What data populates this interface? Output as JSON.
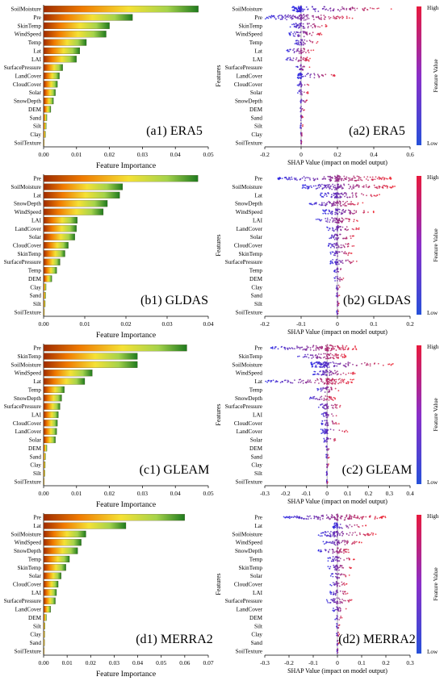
{
  "chart_data": [
    {
      "id": "a1",
      "type": "bar",
      "orientation": "horizontal",
      "panel_label": "(a1) ERA5",
      "xlabel": "Feature Importance",
      "xlim": [
        0,
        0.05
      ],
      "xticks": [
        "0.00",
        "0.01",
        "0.02",
        "0.03",
        "0.04",
        "0.05"
      ],
      "categories": [
        "SoilMoisture",
        "Pre",
        "SkinTemp",
        "WindSpeed",
        "Temp",
        "Lat",
        "LAI",
        "SurfacePressure",
        "LandCover",
        "CloudCover",
        "Solar",
        "SnowDepth",
        "DEM",
        "Sand",
        "Silt",
        "Clay",
        "SoilTexture"
      ],
      "values": [
        0.047,
        0.027,
        0.02,
        0.019,
        0.013,
        0.011,
        0.01,
        0.0058,
        0.0048,
        0.0042,
        0.0036,
        0.003,
        0.0022,
        0.001,
        0.0008,
        0.0006,
        0.0002
      ]
    },
    {
      "id": "a2",
      "type": "scatter",
      "subtype": "shap_beeswarm",
      "panel_label": "(a2) ERA5",
      "xlabel": "SHAP Value (impact on model output)",
      "ylabel": "Features",
      "colorbar_label": "Feature Value",
      "colorbar_high": "High",
      "colorbar_low": "Low",
      "xlim": [
        -0.2,
        0.6
      ],
      "xticks": [
        "-0.2",
        "0",
        "0.2",
        "0.4",
        "0.6"
      ],
      "categories": [
        "SoilMoisture",
        "Pre",
        "SkinTemp",
        "WindSpeed",
        "Temp",
        "Lat",
        "LAI",
        "SurfacePressure",
        "LandCover",
        "CloudCover",
        "Solar",
        "SnowDepth",
        "DEM",
        "Sand",
        "Silt",
        "Clay",
        "SoilTexture"
      ],
      "ranges": [
        [
          -0.05,
          0.5
        ],
        [
          -0.2,
          0.3
        ],
        [
          -0.06,
          0.15
        ],
        [
          -0.07,
          0.12
        ],
        [
          -0.04,
          0.1
        ],
        [
          -0.08,
          0.07
        ],
        [
          -0.09,
          0.05
        ],
        [
          -0.03,
          0.05
        ],
        [
          -0.02,
          0.2
        ],
        [
          -0.02,
          0.05
        ],
        [
          -0.02,
          0.04
        ],
        [
          -0.01,
          0.04
        ],
        [
          -0.01,
          0.02
        ],
        [
          -0.005,
          0.01
        ],
        [
          -0.005,
          0.01
        ],
        [
          -0.003,
          0.006
        ],
        [
          -0.002,
          0.003
        ]
      ]
    },
    {
      "id": "b1",
      "type": "bar",
      "orientation": "horizontal",
      "panel_label": "(b1) GLDAS",
      "xlabel": "Feature Importance",
      "xlim": [
        0,
        0.04
      ],
      "xticks": [
        "0.00",
        "0.01",
        "0.02",
        "0.03",
        "0.04"
      ],
      "categories": [
        "Pre",
        "SoilMoisture",
        "Lat",
        "SnowDepth",
        "WindSpeed",
        "LAI",
        "LandCover",
        "Solar",
        "CloudCover",
        "SkinTemp",
        "SurfacePressure",
        "Temp",
        "DEM",
        "Clay",
        "Sand",
        "Silt",
        "SoilTexture"
      ],
      "values": [
        0.0375,
        0.0192,
        0.0185,
        0.0155,
        0.0145,
        0.0082,
        0.008,
        0.0076,
        0.006,
        0.0052,
        0.004,
        0.0032,
        0.002,
        0.0006,
        0.0005,
        0.0004,
        0.0002
      ]
    },
    {
      "id": "b2",
      "type": "scatter",
      "subtype": "shap_beeswarm",
      "panel_label": "(b2) GLDAS",
      "xlabel": "SHAP Value (impact on model output)",
      "ylabel": "Features",
      "colorbar_label": "Feature Value",
      "colorbar_high": "High",
      "colorbar_low": "Low",
      "xlim": [
        -0.2,
        0.2
      ],
      "xticks": [
        "-0.2",
        "-0.1",
        "0",
        "0.1",
        "0.2"
      ],
      "categories": [
        "Pre",
        "SoilMoisture",
        "Lat",
        "SnowDepth",
        "WindSpeed",
        "LAI",
        "LandCover",
        "Solar",
        "CloudCover",
        "SkinTemp",
        "SurfacePressure",
        "Temp",
        "DEM",
        "Clay",
        "Sand",
        "Silt",
        "SoilTexture"
      ],
      "ranges": [
        [
          -0.17,
          0.15
        ],
        [
          -0.1,
          0.16
        ],
        [
          -0.05,
          0.12
        ],
        [
          -0.08,
          0.07
        ],
        [
          -0.04,
          0.1
        ],
        [
          -0.06,
          0.06
        ],
        [
          -0.03,
          0.06
        ],
        [
          -0.03,
          0.05
        ],
        [
          -0.03,
          0.05
        ],
        [
          -0.02,
          0.04
        ],
        [
          -0.02,
          0.06
        ],
        [
          -0.01,
          0.02
        ],
        [
          -0.01,
          0.02
        ],
        [
          -0.005,
          0.008
        ],
        [
          -0.004,
          0.006
        ],
        [
          -0.003,
          0.005
        ],
        [
          -0.002,
          0.003
        ]
      ]
    },
    {
      "id": "c1",
      "type": "bar",
      "orientation": "horizontal",
      "panel_label": "(c1) GLEAM",
      "xlabel": "Feature Importance",
      "xlim": [
        0,
        0.05
      ],
      "xticks": [
        "0.00",
        "0.01",
        "0.02",
        "0.03",
        "0.04",
        "0.05"
      ],
      "categories": [
        "Pre",
        "SkinTemp",
        "SoilMoisture",
        "WindSpeed",
        "Lat",
        "Temp",
        "SnowDepth",
        "SurfacePressure",
        "LAI",
        "CloudCover",
        "LandCover",
        "Solar",
        "DEM",
        "Sand",
        "Clay",
        "Silt",
        "SoilTexture"
      ],
      "values": [
        0.0435,
        0.0285,
        0.0285,
        0.0148,
        0.0125,
        0.0063,
        0.0055,
        0.005,
        0.0045,
        0.0042,
        0.004,
        0.0036,
        0.001,
        0.0006,
        0.0005,
        0.0004,
        0.0002
      ]
    },
    {
      "id": "c2",
      "type": "scatter",
      "subtype": "shap_beeswarm",
      "panel_label": "(c2) GLEAM",
      "xlabel": "SHAP Value (impact on model output)",
      "ylabel": "Features",
      "colorbar_label": "Feature Value",
      "colorbar_high": "High",
      "colorbar_low": "Low",
      "xlim": [
        -0.3,
        0.4
      ],
      "xticks": [
        "-0.3",
        "-0.2",
        "-0.1",
        "0",
        "0.1",
        "0.2",
        "0.3",
        "0.4"
      ],
      "categories": [
        "Pre",
        "SkinTemp",
        "SoilMoisture",
        "WindSpeed",
        "Lat",
        "Temp",
        "SnowDepth",
        "SurfacePressure",
        "LAI",
        "CloudCover",
        "LandCover",
        "Solar",
        "DEM",
        "Sand",
        "Clay",
        "Silt",
        "SoilTexture"
      ],
      "ranges": [
        [
          -0.28,
          0.15
        ],
        [
          -0.16,
          0.1
        ],
        [
          -0.08,
          0.32
        ],
        [
          -0.07,
          0.14
        ],
        [
          -0.3,
          0.13
        ],
        [
          -0.05,
          0.06
        ],
        [
          -0.09,
          0.04
        ],
        [
          -0.05,
          0.08
        ],
        [
          -0.03,
          0.06
        ],
        [
          -0.03,
          0.06
        ],
        [
          -0.03,
          0.1
        ],
        [
          -0.02,
          0.05
        ],
        [
          -0.01,
          0.02
        ],
        [
          -0.005,
          0.01
        ],
        [
          -0.005,
          0.008
        ],
        [
          -0.003,
          0.006
        ],
        [
          -0.002,
          0.003
        ]
      ]
    },
    {
      "id": "d1",
      "type": "bar",
      "orientation": "horizontal",
      "panel_label": "(d1) MERRA2",
      "xlabel": "Feature Importance",
      "xlim": [
        0,
        0.07
      ],
      "xticks": [
        "0.00",
        "0.01",
        "0.02",
        "0.03",
        "0.04",
        "0.05",
        "0.06",
        "0.07"
      ],
      "categories": [
        "Pre",
        "Lat",
        "SoilMoisture",
        "WindSpeed",
        "SnowDepth",
        "Temp",
        "SkinTemp",
        "Solar",
        "CloudCover",
        "LAI",
        "SurfacePressure",
        "LandCover",
        "DEM",
        "Silt",
        "Clay",
        "Sand",
        "SoilTexture"
      ],
      "values": [
        0.06,
        0.035,
        0.018,
        0.016,
        0.0145,
        0.011,
        0.0095,
        0.0075,
        0.0062,
        0.0055,
        0.005,
        0.003,
        0.0012,
        0.0006,
        0.0005,
        0.0004,
        0.0002
      ]
    },
    {
      "id": "d2",
      "type": "scatter",
      "subtype": "shap_beeswarm",
      "panel_label": "(d2) MERRA2",
      "xlabel": "SHAP Value (impact on model output)",
      "ylabel": "Features",
      "colorbar_label": "Feature Value",
      "colorbar_high": "High",
      "colorbar_low": "Low",
      "xlim": [
        -0.3,
        0.3
      ],
      "xticks": [
        "-0.3",
        "-0.2",
        "-0.1",
        "0",
        "0.1",
        "0.2",
        "0.3"
      ],
      "categories": [
        "Pre",
        "Lat",
        "SoilMoisture",
        "WindSpeed",
        "SnowDepth",
        "Temp",
        "SkinTemp",
        "Solar",
        "CloudCover",
        "LAI",
        "SurfacePressure",
        "LandCover",
        "DEM",
        "Silt",
        "Clay",
        "Sand",
        "SoilTexture"
      ],
      "ranges": [
        [
          -0.23,
          0.2
        ],
        [
          -0.02,
          0.12
        ],
        [
          -0.08,
          0.16
        ],
        [
          -0.06,
          0.1
        ],
        [
          -0.08,
          0.06
        ],
        [
          -0.04,
          0.07
        ],
        [
          -0.04,
          0.06
        ],
        [
          -0.03,
          0.05
        ],
        [
          -0.03,
          0.04
        ],
        [
          -0.03,
          0.05
        ],
        [
          -0.05,
          0.07
        ],
        [
          -0.02,
          0.04
        ],
        [
          -0.01,
          0.02
        ],
        [
          -0.005,
          0.01
        ],
        [
          -0.005,
          0.008
        ],
        [
          -0.003,
          0.006
        ],
        [
          -0.002,
          0.003
        ]
      ]
    }
  ]
}
